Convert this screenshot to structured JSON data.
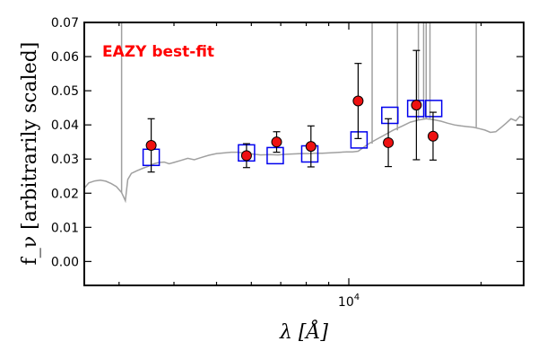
{
  "chart_data": {
    "type": "scatter",
    "title": "",
    "xlabel": "λ [Å]",
    "ylabel": "f_ν [arbitrarily scaled]",
    "xscale": "log",
    "xlim": [
      2500,
      25000
    ],
    "ylim": [
      -0.007,
      0.07
    ],
    "x_tick_labels": [
      {
        "value": 10000,
        "base": "10",
        "exp": "4"
      }
    ],
    "yticks": [
      0.0,
      0.01,
      0.02,
      0.03,
      0.04,
      0.05,
      0.06,
      0.07
    ],
    "ytick_labels": [
      "0.00",
      "0.01",
      "0.02",
      "0.03",
      "0.04",
      "0.05",
      "0.06",
      "0.07"
    ],
    "grid": false,
    "annotation": {
      "text": "EAZY best-fit",
      "color": "#ff0000"
    },
    "colors": {
      "spectrum": "#a0a0a0",
      "model": "#0000ee",
      "observed": "#ee1111"
    },
    "series": [
      {
        "type": "line",
        "points": [
          [
            2500,
            0.0215
          ],
          [
            2560,
            0.023
          ],
          [
            2640,
            0.0236
          ],
          [
            2720,
            0.0238
          ],
          [
            2800,
            0.0235
          ],
          [
            2880,
            0.0228
          ],
          [
            2960,
            0.0219
          ],
          [
            3040,
            0.0202
          ],
          [
            3100,
            0.0178
          ],
          [
            3140,
            0.024
          ],
          [
            3200,
            0.0258
          ],
          [
            3300,
            0.0266
          ],
          [
            3400,
            0.0273
          ],
          [
            3500,
            0.0279
          ],
          [
            3600,
            0.0286
          ],
          [
            3700,
            0.029
          ],
          [
            3800,
            0.0291
          ],
          [
            3900,
            0.0286
          ],
          [
            4000,
            0.029
          ],
          [
            4150,
            0.0296
          ],
          [
            4300,
            0.0302
          ],
          [
            4450,
            0.0298
          ],
          [
            4600,
            0.0304
          ],
          [
            4800,
            0.0311
          ],
          [
            5000,
            0.0316
          ],
          [
            5200,
            0.0318
          ],
          [
            5400,
            0.032
          ],
          [
            5600,
            0.032
          ],
          [
            5800,
            0.0317
          ],
          [
            6000,
            0.0315
          ],
          [
            6300,
            0.0312
          ],
          [
            6600,
            0.0313
          ],
          [
            6900,
            0.0312
          ],
          [
            7200,
            0.0314
          ],
          [
            7500,
            0.0315
          ],
          [
            7800,
            0.0316
          ],
          [
            8100,
            0.0316
          ],
          [
            8400,
            0.0317
          ],
          [
            8700,
            0.0317
          ],
          [
            9000,
            0.0318
          ],
          [
            9300,
            0.0319
          ],
          [
            9600,
            0.032
          ],
          [
            9900,
            0.0321
          ],
          [
            10200,
            0.0321
          ],
          [
            10500,
            0.0323
          ],
          [
            10800,
            0.0334
          ],
          [
            11100,
            0.0345
          ],
          [
            11500,
            0.0356
          ],
          [
            12000,
            0.0369
          ],
          [
            12600,
            0.0384
          ],
          [
            13200,
            0.0396
          ],
          [
            13800,
            0.0408
          ],
          [
            14400,
            0.0414
          ],
          [
            15000,
            0.0418
          ],
          [
            15600,
            0.0415
          ],
          [
            16200,
            0.0411
          ],
          [
            16800,
            0.0405
          ],
          [
            17400,
            0.04
          ],
          [
            18000,
            0.0397
          ],
          [
            18600,
            0.0395
          ],
          [
            19200,
            0.0393
          ],
          [
            19800,
            0.0389
          ],
          [
            20400,
            0.0385
          ],
          [
            21000,
            0.0378
          ],
          [
            21600,
            0.038
          ],
          [
            22200,
            0.0392
          ],
          [
            22800,
            0.0405
          ],
          [
            23400,
            0.0418
          ],
          [
            24000,
            0.0412
          ],
          [
            24500,
            0.0425
          ],
          [
            25000,
            0.042
          ]
        ],
        "spikes": [
          [
            3040,
            0.07
          ],
          [
            11300,
            0.07
          ],
          [
            12900,
            0.07
          ],
          [
            14400,
            0.07
          ],
          [
            14800,
            0.07
          ],
          [
            15000,
            0.07
          ],
          [
            15300,
            0.07
          ],
          [
            19500,
            0.07
          ]
        ]
      },
      {
        "type": "scatter",
        "marker": "square",
        "points": [
          [
            3550,
            0.0305
          ],
          [
            5850,
            0.0318
          ],
          [
            6800,
            0.031
          ],
          [
            8150,
            0.0315
          ],
          [
            10550,
            0.0356
          ],
          [
            12400,
            0.0428
          ],
          [
            14200,
            0.0448
          ],
          [
            15600,
            0.0448
          ]
        ]
      },
      {
        "type": "scatter",
        "marker": "circle",
        "points": [
          [
            3550,
            0.034
          ],
          [
            5850,
            0.031
          ],
          [
            6850,
            0.035
          ],
          [
            8200,
            0.0337
          ],
          [
            10500,
            0.047
          ],
          [
            12300,
            0.0348
          ],
          [
            14250,
            0.0458
          ],
          [
            15550,
            0.0367
          ]
        ],
        "errors": [
          [
            0.0078,
            0.0078
          ],
          [
            0.0035,
            0.0035
          ],
          [
            0.003,
            0.003
          ],
          [
            0.006,
            0.006
          ],
          [
            0.011,
            0.011
          ],
          [
            0.007,
            0.007
          ],
          [
            0.016,
            0.016
          ],
          [
            0.007,
            0.007
          ]
        ]
      }
    ]
  }
}
